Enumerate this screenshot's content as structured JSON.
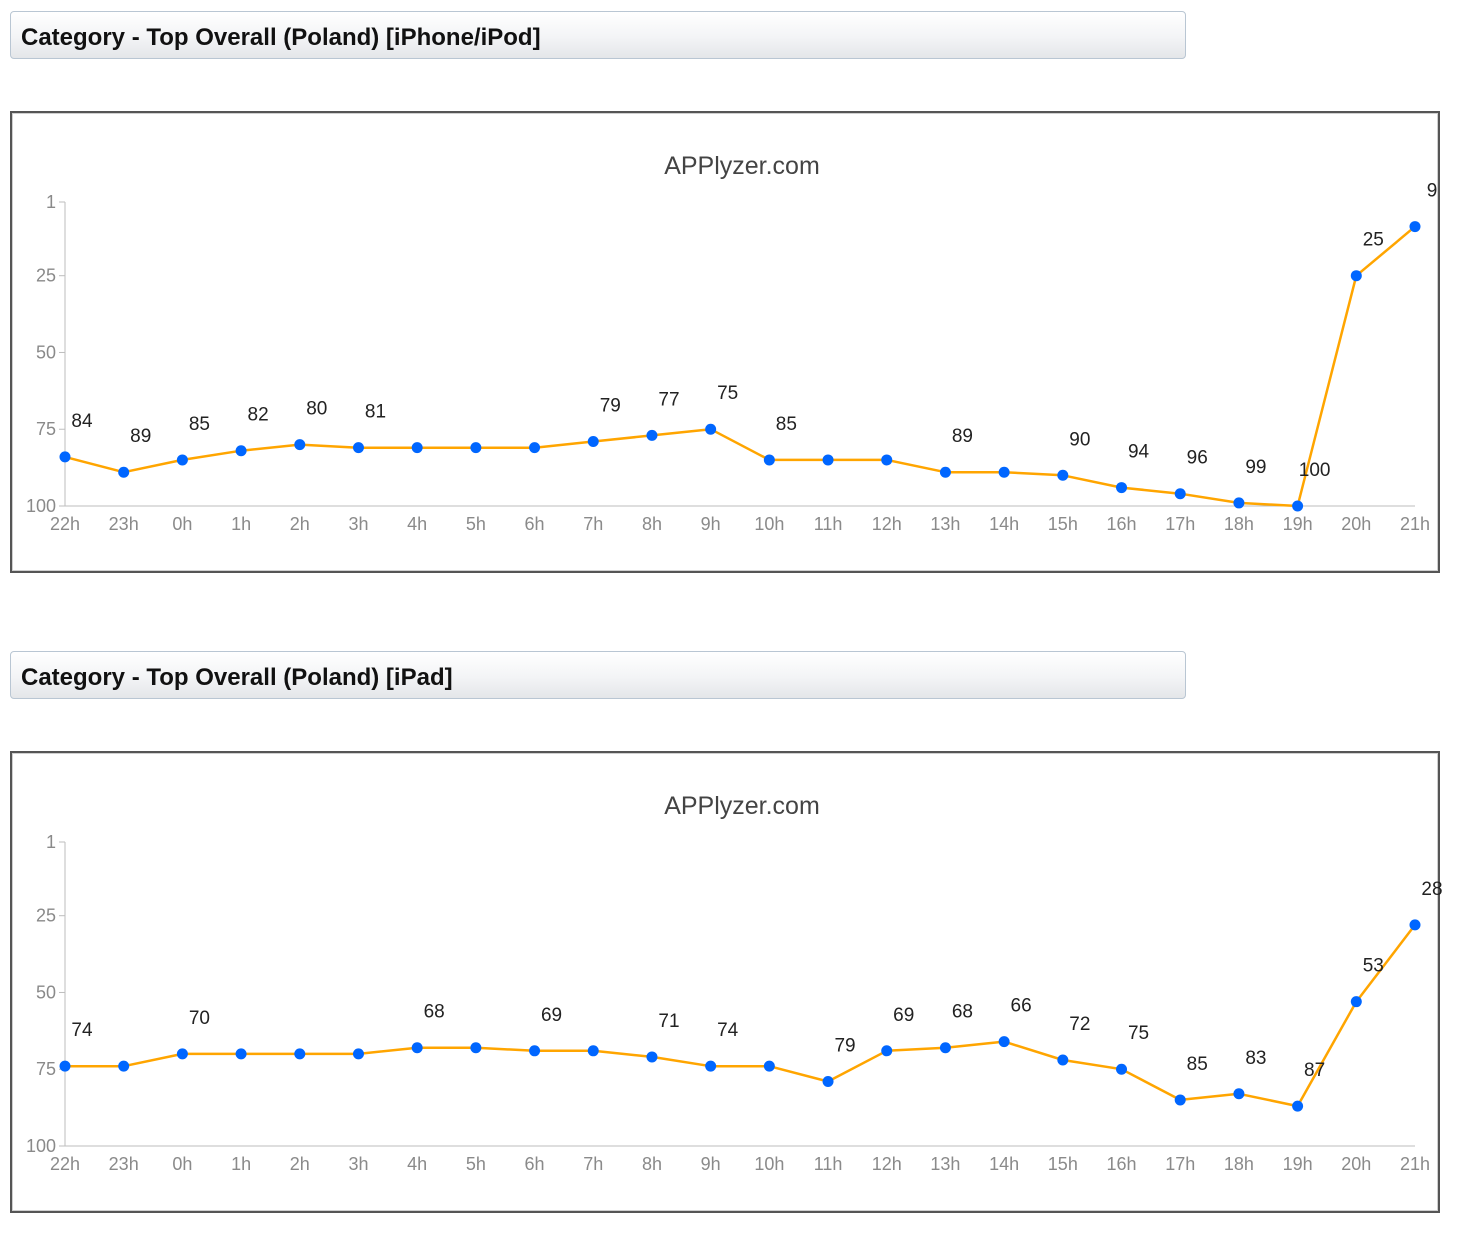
{
  "sections": [
    {
      "header": "Category - Top Overall (Poland) [iPhone/iPod]"
    },
    {
      "header": "Category - Top Overall (Poland) [iPad]"
    }
  ],
  "chart_data": [
    {
      "type": "line",
      "title": "APPlyzer.com",
      "xlabel": "",
      "ylabel": "",
      "y_reversed": true,
      "ylim": [
        1,
        100
      ],
      "y_ticks": [
        "1",
        "25",
        "50",
        "75",
        "100"
      ],
      "categories": [
        "22h",
        "23h",
        "0h",
        "1h",
        "2h",
        "3h",
        "4h",
        "5h",
        "6h",
        "7h",
        "8h",
        "9h",
        "10h",
        "11h",
        "12h",
        "13h",
        "14h",
        "15h",
        "16h",
        "17h",
        "18h",
        "19h",
        "20h",
        "21h"
      ],
      "series": [
        {
          "values": [
            84,
            89,
            85,
            82,
            80,
            81,
            81,
            81,
            81,
            79,
            77,
            75,
            85,
            85,
            85,
            89,
            89,
            90,
            94,
            96,
            99,
            100,
            25,
            9
          ],
          "labels": [
            "84",
            "89",
            "85",
            "82",
            "80",
            "81",
            "",
            "",
            "",
            "79",
            "77",
            "75",
            "85",
            "",
            "",
            "89",
            "",
            "90",
            "94",
            "96",
            "99",
            "100",
            "25",
            "9"
          ]
        }
      ],
      "line_color": "#ffa500",
      "marker_color": "#0066ff",
      "grid": false
    },
    {
      "type": "line",
      "title": "APPlyzer.com",
      "xlabel": "",
      "ylabel": "",
      "y_reversed": true,
      "ylim": [
        1,
        100
      ],
      "y_ticks": [
        "1",
        "25",
        "50",
        "75",
        "100"
      ],
      "categories": [
        "22h",
        "23h",
        "0h",
        "1h",
        "2h",
        "3h",
        "4h",
        "5h",
        "6h",
        "7h",
        "8h",
        "9h",
        "10h",
        "11h",
        "12h",
        "13h",
        "14h",
        "15h",
        "16h",
        "17h",
        "18h",
        "19h",
        "20h",
        "21h"
      ],
      "series": [
        {
          "values": [
            74,
            74,
            70,
            70,
            70,
            70,
            68,
            68,
            69,
            69,
            71,
            74,
            74,
            79,
            69,
            68,
            66,
            72,
            75,
            85,
            83,
            87,
            53,
            28
          ],
          "labels": [
            "74",
            "",
            "70",
            "",
            "",
            "",
            "68",
            "",
            "69",
            "",
            "71",
            "74",
            "",
            "79",
            "69",
            "68",
            "66",
            "72",
            "75",
            "85",
            "83",
            "87",
            "53",
            "28"
          ]
        }
      ],
      "line_color": "#ffa500",
      "marker_color": "#0066ff",
      "grid": false
    }
  ]
}
